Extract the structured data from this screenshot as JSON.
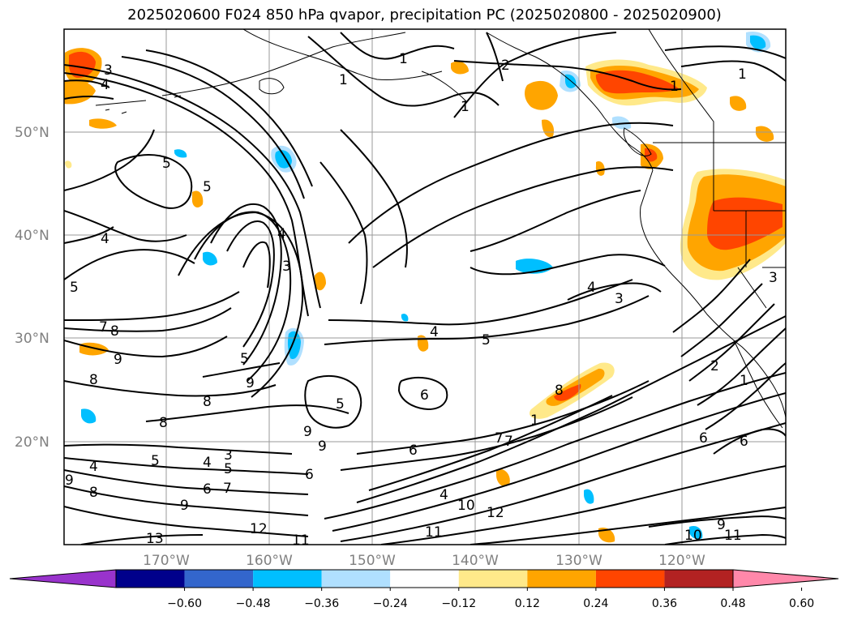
{
  "title": "2025020600 F024 850 hPa qvapor, precipitation PC (2025020800 - 2025020900)",
  "lat_labels": [
    "50°N",
    "40°N",
    "30°N",
    "20°N"
  ],
  "lon_labels": [
    "170°W",
    "160°W",
    "150°W",
    "140°W",
    "130°W",
    "120°W"
  ],
  "colorbar": {
    "tick_labels": [
      "−0.60",
      "−0.48",
      "−0.36",
      "−0.24",
      "−0.12",
      "0.12",
      "0.24",
      "0.36",
      "0.48",
      "0.60"
    ],
    "colors": [
      "#9933cc",
      "#00008b",
      "#3366cc",
      "#00bfff",
      "#b0e0ff",
      "#ffffff",
      "#ffe98a",
      "#ffa500",
      "#ff4500",
      "#b22222",
      "#ff88aa"
    ]
  },
  "colors": {
    "pos_light": "#ffe98a",
    "pos_mid": "#ffa500",
    "pos_strong": "#ff4500",
    "neg_light": "#b0e0ff",
    "neg_mid": "#00bfff",
    "contour": "#000000",
    "grid": "#9a9a9a"
  },
  "contour_labels": {
    "c1a": "1",
    "c1b": "1",
    "c1c": "1",
    "c1d": "1",
    "c2a": "2",
    "c3a": "3",
    "c4a": "4",
    "c5a": "5",
    "c5b": "5",
    "c4b": "4",
    "c3b": "3",
    "c4c": "4",
    "c7a": "7",
    "c8a": "8",
    "c9a": "9",
    "c8b": "8",
    "c5c": "5",
    "c9b": "9",
    "c8c": "8",
    "c8d": "8",
    "c5d": "5",
    "c4d": "4",
    "c5e": "5",
    "c6a": "6",
    "c3c": "3",
    "c8e": "8",
    "c7b": "7",
    "c6b": "6",
    "c4e": "4",
    "c10a": "10",
    "c12a": "12",
    "c11a": "11",
    "c9c": "9",
    "c9d": "9",
    "c6c": "6",
    "c11b": "11",
    "c12b": "12",
    "c13a": "13",
    "c4f": "4",
    "c3d": "3",
    "c5f": "5",
    "c6d": "6",
    "c7c": "7",
    "c8f": "8",
    "c9e": "9",
    "c11c": "11",
    "c9f": "9",
    "c1e": "1",
    "c2b": "2",
    "c1f": "1",
    "c3e": "3",
    "c4g": "4",
    "c5g": "5",
    "c6e": "6",
    "c7d": "7",
    "c9g": "9",
    "c6f": "6",
    "c5h": "5",
    "c3f": "3",
    "c1g": "1",
    "c10b": "10"
  }
}
